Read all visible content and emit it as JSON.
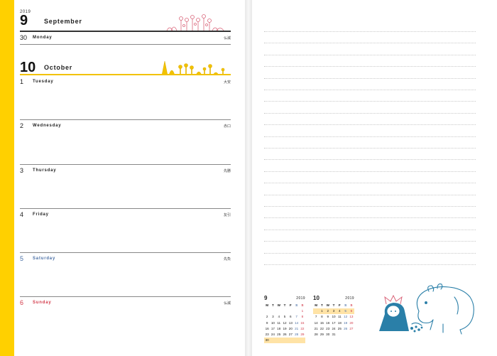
{
  "september": {
    "year": "2019",
    "number": "9",
    "name": "September"
  },
  "sep30": {
    "num": "30",
    "name": "Monday",
    "rokuyo": "仏滅"
  },
  "october": {
    "number": "10",
    "name": "October"
  },
  "days": [
    {
      "num": "1",
      "name": "Tuesday",
      "rokuyo": "大安"
    },
    {
      "num": "2",
      "name": "Wednesday",
      "rokuyo": "赤口"
    },
    {
      "num": "3",
      "name": "Thursday",
      "rokuyo": "先勝"
    },
    {
      "num": "4",
      "name": "Friday",
      "rokuyo": "友引"
    },
    {
      "num": "5",
      "name": "Saturday",
      "rokuyo": "先負"
    },
    {
      "num": "6",
      "name": "Sunday",
      "rokuyo": "仏滅"
    }
  ],
  "minicals": [
    {
      "month": "9",
      "year": "2019",
      "weekdays": [
        "M",
        "T",
        "W",
        "T",
        "F",
        "S",
        "S"
      ],
      "cells": [
        "",
        "",
        "",
        "",
        "",
        "",
        "1",
        "2",
        "3",
        "4",
        "5",
        "6",
        "7",
        "8",
        "9",
        "10",
        "11",
        "12",
        "13",
        "14",
        "15",
        "16",
        "17",
        "18",
        "19",
        "20",
        "21",
        "22",
        "23",
        "24",
        "25",
        "26",
        "27",
        "28",
        "29",
        "30",
        "",
        "",
        "",
        "",
        "",
        ""
      ]
    },
    {
      "month": "10",
      "year": "2019",
      "weekdays": [
        "M",
        "T",
        "W",
        "T",
        "F",
        "S",
        "S"
      ],
      "cells": [
        "",
        "1",
        "2",
        "3",
        "4",
        "5",
        "6",
        "7",
        "8",
        "9",
        "10",
        "11",
        "12",
        "13",
        "14",
        "15",
        "16",
        "17",
        "18",
        "19",
        "20",
        "21",
        "22",
        "23",
        "24",
        "25",
        "26",
        "27",
        "28",
        "29",
        "30",
        "31",
        "",
        "",
        ""
      ]
    }
  ],
  "colors": {
    "yellow_stripe": "#ffd000",
    "saturday": "#4a6fa5",
    "sunday": "#d33a4a",
    "october_rule": "#f2c200",
    "september_rule": "#333333",
    "moomin_blue": "#2a7fa8",
    "flower_red": "#d9657a"
  },
  "illustrations": [
    "flower-cluster-red",
    "flower-cluster-yellow",
    "moomin-and-little-my"
  ]
}
